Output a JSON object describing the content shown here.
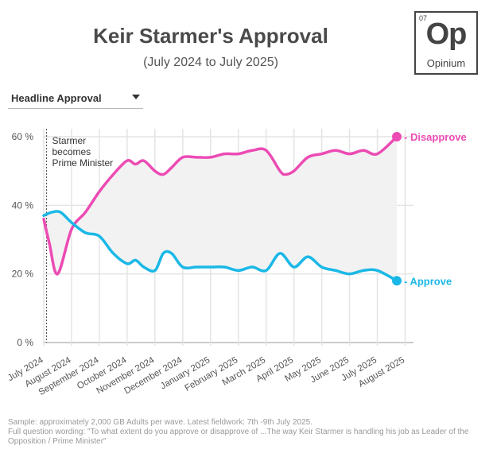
{
  "header": {
    "title": "Keir Starmer's Approval",
    "subtitle": "(July 2024 to July 2025)"
  },
  "logo": {
    "number": "07",
    "symbol": "Op",
    "name": "Opinium"
  },
  "dropdown": {
    "selected": "Headline Approval"
  },
  "colors": {
    "approve": "#1ab8e6",
    "disapprove": "#ec4bb4",
    "band": "#f2f2f2",
    "grid": "#e4e4e4"
  },
  "chart_data": {
    "type": "line",
    "yticks": [
      "0 %",
      "20 %",
      "40 %",
      "60 %"
    ],
    "ylim": [
      0,
      60
    ],
    "xlim": [
      0,
      13.3
    ],
    "categories": [
      "July 2024",
      "August 2024",
      "September 2024",
      "October 2024",
      "November 2024",
      "December 2024",
      "January 2025",
      "February 2025",
      "March 2025",
      "April 2025",
      "May 2025",
      "June 2025",
      "July 2025",
      "August 2025"
    ],
    "annotation": {
      "x": 0.1,
      "lines": [
        "Starmer",
        "becomes",
        "Prime Minister"
      ]
    },
    "series": [
      {
        "name": "Disapprove",
        "label": "- Disapprove",
        "x": [
          0.0,
          0.2,
          0.5,
          1.0,
          1.5,
          2.0,
          2.5,
          3.0,
          3.3,
          3.6,
          4.0,
          4.3,
          4.6,
          5.0,
          5.5,
          6.0,
          6.5,
          7.0,
          7.5,
          8.0,
          8.5,
          8.7,
          9.0,
          9.5,
          10.0,
          10.5,
          11.0,
          11.5,
          12.0,
          12.7
        ],
        "values": [
          36,
          29,
          20,
          33,
          38,
          44,
          49,
          53,
          52,
          53,
          50,
          49,
          51,
          54,
          54,
          54,
          55,
          55,
          56,
          56,
          50,
          49,
          50,
          54,
          55,
          56,
          55,
          56,
          55,
          60
        ]
      },
      {
        "name": "Approve",
        "label": "- Approve",
        "x": [
          0.0,
          0.3,
          0.6,
          1.0,
          1.5,
          2.0,
          2.5,
          3.0,
          3.3,
          3.6,
          4.0,
          4.3,
          4.6,
          5.0,
          5.5,
          6.0,
          6.5,
          7.0,
          7.5,
          8.0,
          8.5,
          9.0,
          9.5,
          10.0,
          10.5,
          11.0,
          11.5,
          12.0,
          12.7
        ],
        "values": [
          37,
          38,
          38,
          35,
          32,
          31,
          26,
          23,
          24,
          22,
          21,
          26,
          26,
          22,
          22,
          22,
          22,
          21,
          22,
          21,
          26,
          22,
          25,
          22,
          21,
          20,
          21,
          21,
          18
        ]
      }
    ]
  },
  "footer": {
    "line1": "Sample: approximately 2,000 GB Adults per wave. Latest fieldwork: 7th -9th July 2025.",
    "line2": "Full question wording: \"To what extent do you approve or disapprove of ...The way Keir Starmer is handling his job as Leader of the Opposition / Prime Minister\""
  }
}
